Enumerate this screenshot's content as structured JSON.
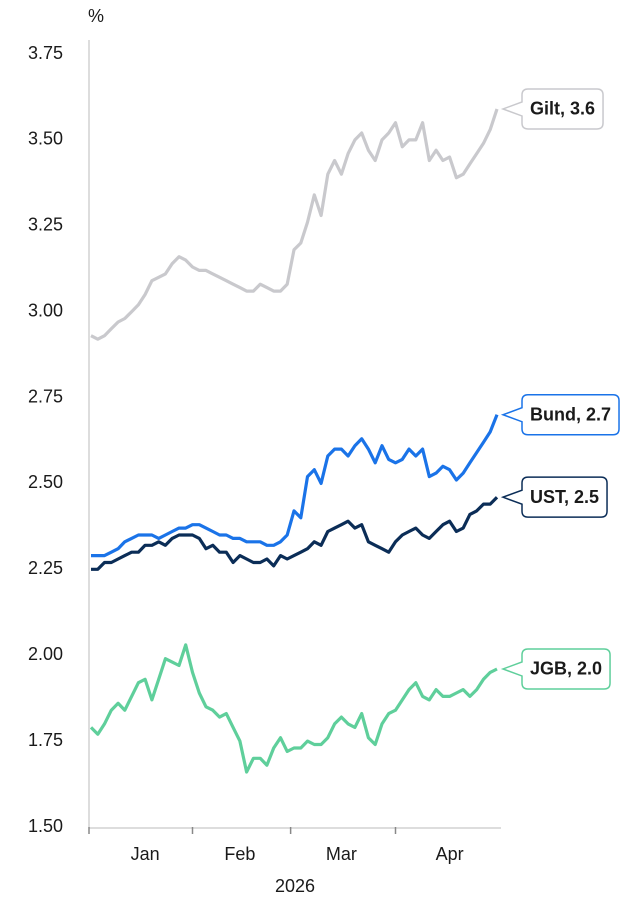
{
  "chart_data": {
    "type": "line",
    "y_unit": "%",
    "x_label": "2026",
    "categories": [
      null,
      null,
      null,
      null,
      null,
      null,
      null,
      null,
      "Jan",
      null,
      null,
      null,
      null,
      null,
      null,
      null,
      null,
      null,
      null,
      null,
      null,
      null,
      "Feb",
      null,
      null,
      null,
      null,
      null,
      null,
      null,
      null,
      null,
      null,
      null,
      null,
      null,
      null,
      "Mar",
      null,
      null,
      null,
      null,
      null,
      null,
      null,
      null,
      null,
      null,
      null,
      null,
      null,
      null,
      null,
      "Apr",
      null,
      null,
      null,
      null,
      null,
      null,
      null
    ],
    "ylim": [
      1.5,
      3.75
    ],
    "yticks": [
      {
        "value": 1.5,
        "label": "1.50"
      },
      {
        "value": 1.75,
        "label": "1.75"
      },
      {
        "value": 2.0,
        "label": "2.00"
      },
      {
        "value": 2.25,
        "label": "2.25"
      },
      {
        "value": 2.5,
        "label": "2.50"
      },
      {
        "value": 2.75,
        "label": "2.75"
      },
      {
        "value": 3.0,
        "label": "3.00"
      },
      {
        "value": 3.25,
        "label": "3.25"
      },
      {
        "value": 3.5,
        "label": "3.50"
      },
      {
        "value": 3.75,
        "label": "3.75"
      }
    ],
    "grid": false,
    "series": [
      {
        "name": "Gilt, 3.6",
        "color": "#c9c9cd",
        "label_color": "#8a8a8e",
        "values": [
          2.93,
          2.92,
          2.93,
          2.95,
          2.97,
          2.98,
          3.0,
          3.02,
          3.05,
          3.09,
          3.1,
          3.11,
          3.14,
          3.16,
          3.15,
          3.13,
          3.12,
          3.12,
          3.11,
          3.1,
          3.09,
          3.08,
          3.07,
          3.06,
          3.06,
          3.08,
          3.07,
          3.06,
          3.06,
          3.08,
          3.18,
          3.2,
          3.26,
          3.34,
          3.28,
          3.4,
          3.44,
          3.4,
          3.46,
          3.5,
          3.52,
          3.47,
          3.44,
          3.5,
          3.52,
          3.55,
          3.48,
          3.5,
          3.5,
          3.55,
          3.44,
          3.47,
          3.44,
          3.45,
          3.39,
          3.4,
          3.43,
          3.46,
          3.49,
          3.53,
          3.59
        ]
      },
      {
        "name": "Bund, 2.7",
        "color": "#1a73e8",
        "label_color": "#1a73e8",
        "values": [
          2.29,
          2.29,
          2.29,
          2.3,
          2.31,
          2.33,
          2.34,
          2.35,
          2.35,
          2.35,
          2.34,
          2.35,
          2.36,
          2.37,
          2.37,
          2.38,
          2.38,
          2.37,
          2.36,
          2.35,
          2.35,
          2.34,
          2.34,
          2.33,
          2.33,
          2.33,
          2.32,
          2.32,
          2.33,
          2.35,
          2.42,
          2.4,
          2.52,
          2.54,
          2.5,
          2.58,
          2.6,
          2.6,
          2.58,
          2.61,
          2.63,
          2.6,
          2.56,
          2.61,
          2.57,
          2.56,
          2.57,
          2.6,
          2.58,
          2.6,
          2.52,
          2.53,
          2.55,
          2.54,
          2.51,
          2.53,
          2.56,
          2.59,
          2.62,
          2.65,
          2.7
        ]
      },
      {
        "name": "UST, 2.5",
        "color": "#0b2d57",
        "label_color": "#0b2d57",
        "values": [
          2.25,
          2.25,
          2.27,
          2.27,
          2.28,
          2.29,
          2.3,
          2.3,
          2.32,
          2.32,
          2.33,
          2.32,
          2.34,
          2.35,
          2.35,
          2.35,
          2.34,
          2.31,
          2.32,
          2.3,
          2.3,
          2.27,
          2.29,
          2.28,
          2.27,
          2.27,
          2.28,
          2.26,
          2.29,
          2.28,
          2.29,
          2.3,
          2.31,
          2.33,
          2.32,
          2.36,
          2.37,
          2.38,
          2.39,
          2.37,
          2.38,
          2.33,
          2.32,
          2.31,
          2.3,
          2.33,
          2.35,
          2.36,
          2.37,
          2.35,
          2.34,
          2.36,
          2.38,
          2.39,
          2.36,
          2.37,
          2.41,
          2.42,
          2.44,
          2.44,
          2.46
        ]
      },
      {
        "name": "JGB, 2.0",
        "color": "#5fcf9b",
        "label_color": "#4cc08a",
        "values": [
          1.79,
          1.77,
          1.8,
          1.84,
          1.86,
          1.84,
          1.88,
          1.92,
          1.93,
          1.87,
          1.93,
          1.99,
          1.98,
          1.97,
          2.03,
          1.95,
          1.89,
          1.85,
          1.84,
          1.82,
          1.83,
          1.79,
          1.75,
          1.66,
          1.7,
          1.7,
          1.68,
          1.73,
          1.76,
          1.72,
          1.73,
          1.73,
          1.75,
          1.74,
          1.74,
          1.76,
          1.8,
          1.82,
          1.8,
          1.79,
          1.83,
          1.76,
          1.74,
          1.8,
          1.83,
          1.84,
          1.87,
          1.9,
          1.92,
          1.88,
          1.87,
          1.9,
          1.88,
          1.88,
          1.89,
          1.9,
          1.88,
          1.9,
          1.93,
          1.95,
          1.96
        ]
      }
    ]
  }
}
